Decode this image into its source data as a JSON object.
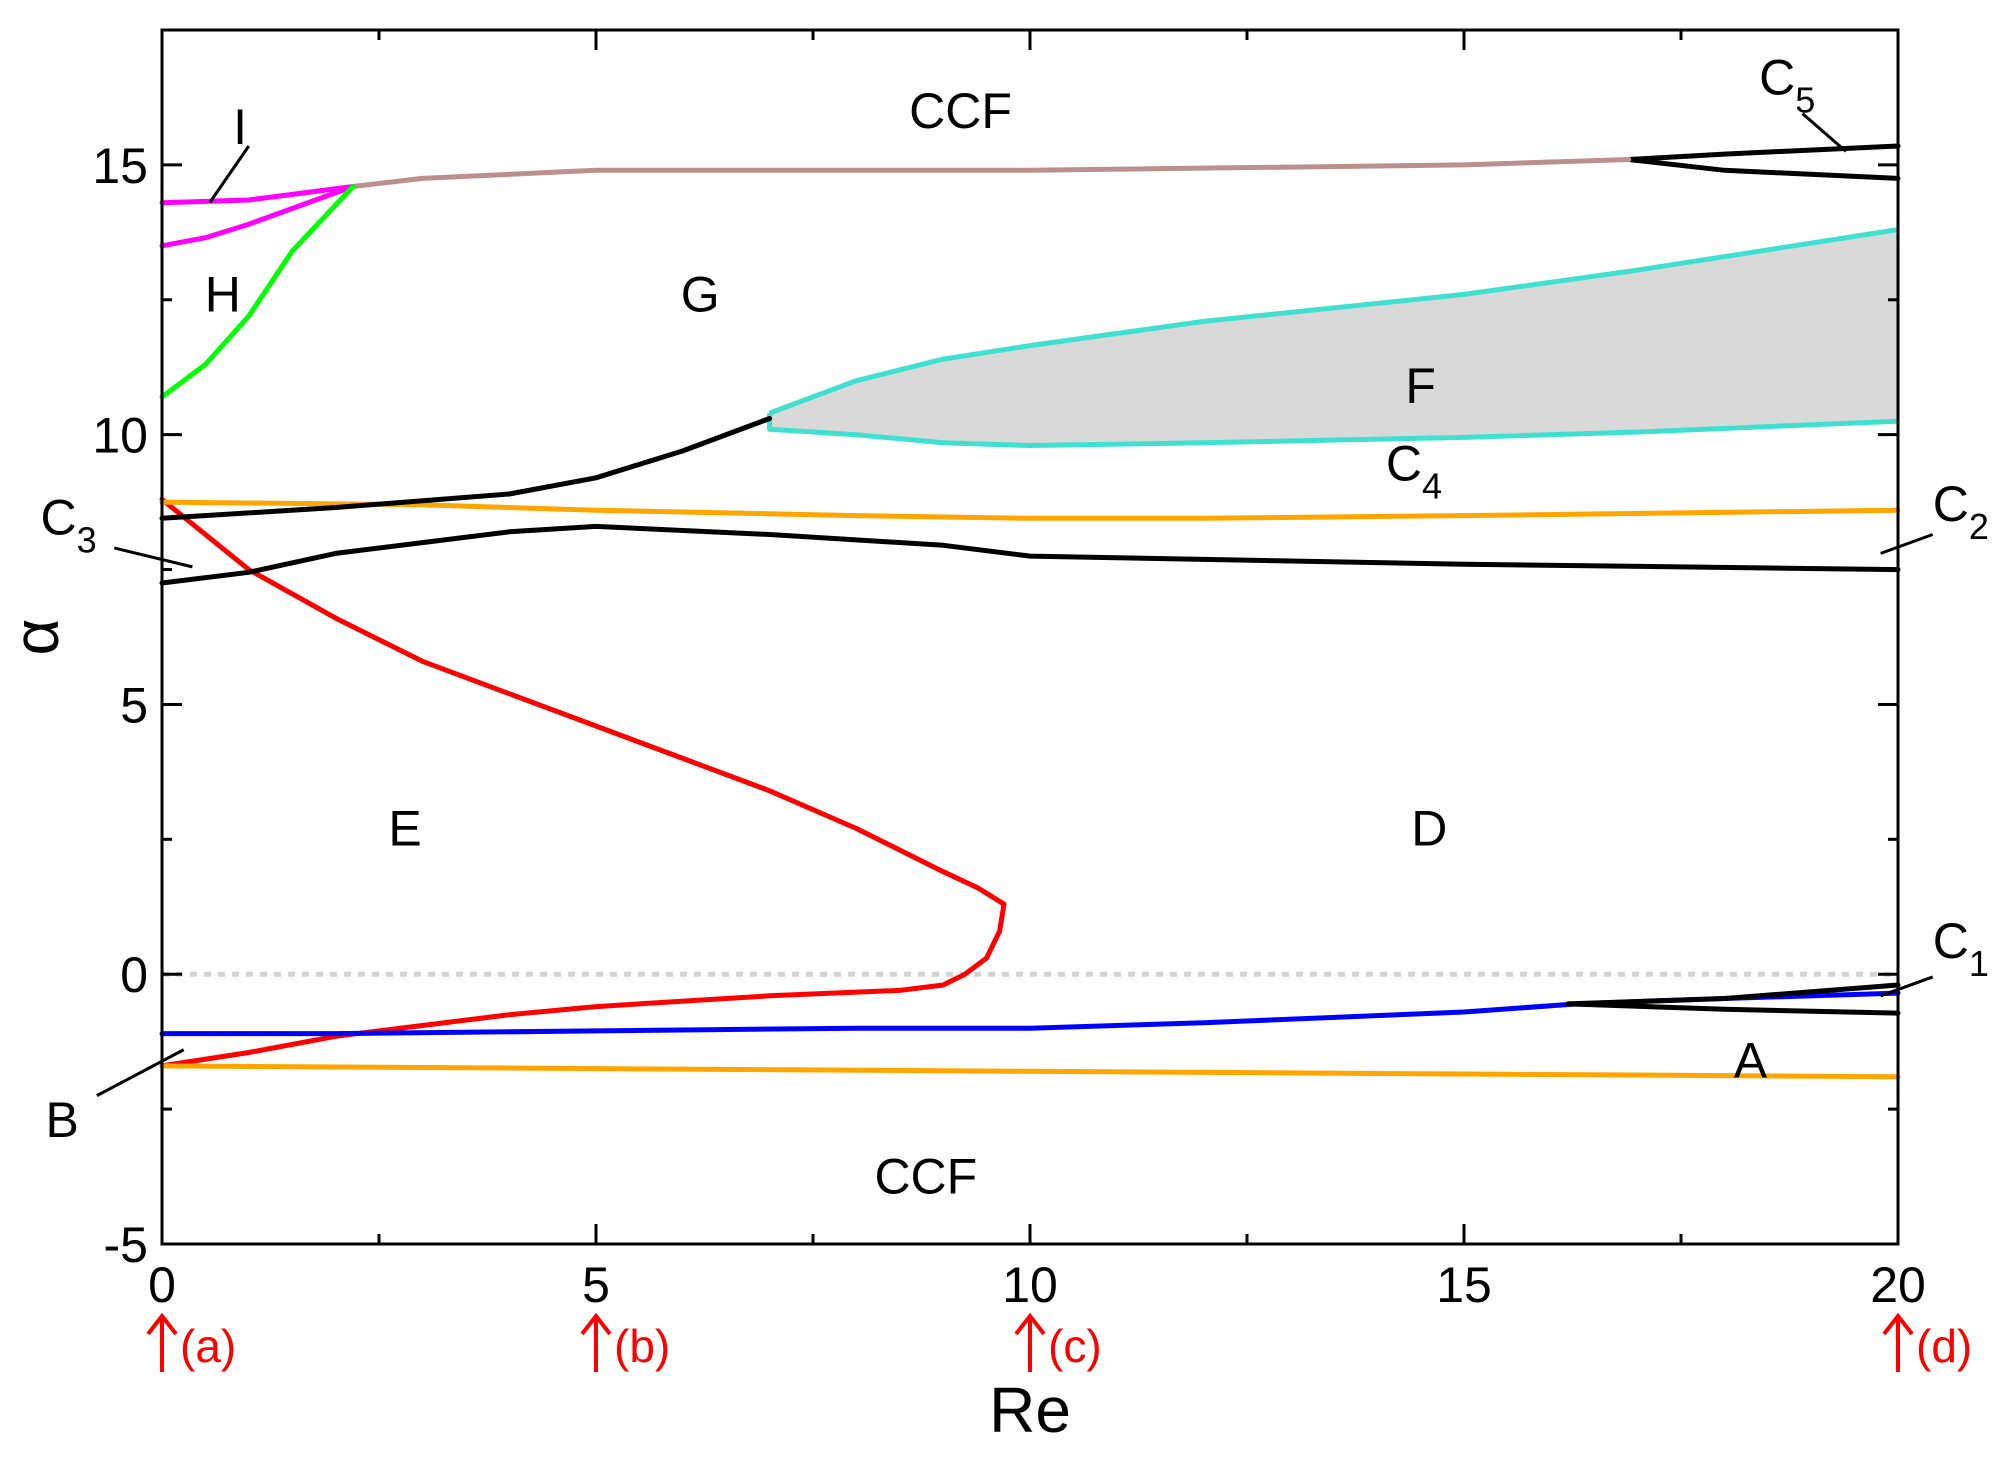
{
  "chart_data": {
    "type": "line",
    "xlabel": "Re",
    "ylabel": "α",
    "xlim": [
      0,
      20
    ],
    "ylim": [
      -5,
      17.5
    ],
    "x_ticks": [
      0,
      5,
      10,
      15,
      20
    ],
    "y_ticks": [
      -5,
      0,
      5,
      10,
      15
    ],
    "grid": false,
    "dotted_reference_line": {
      "y": 0,
      "color": "#d3d3d3"
    },
    "shaded_region": {
      "label": "F",
      "color": "#d9d9d9",
      "upper": [
        [
          7.0,
          10.4
        ],
        [
          7.5,
          10.7
        ],
        [
          8,
          11.0
        ],
        [
          9,
          11.4
        ],
        [
          10,
          11.65
        ],
        [
          12,
          12.1
        ],
        [
          15,
          12.6
        ],
        [
          17,
          13.05
        ],
        [
          20,
          13.8
        ]
      ],
      "lower": [
        [
          7.0,
          10.4
        ],
        [
          7.0,
          10.1
        ],
        [
          8,
          10.0
        ],
        [
          9,
          9.85
        ],
        [
          10,
          9.8
        ],
        [
          12,
          9.85
        ],
        [
          15,
          9.95
        ],
        [
          17,
          10.05
        ],
        [
          20,
          10.25
        ]
      ]
    },
    "series": [
      {
        "color": "#ff0000",
        "points": [
          [
            0,
            8.8
          ],
          [
            1,
            7.5
          ],
          [
            2,
            6.6
          ],
          [
            3,
            5.8
          ],
          [
            4,
            5.2
          ],
          [
            5,
            4.6
          ],
          [
            6,
            4.0
          ],
          [
            7,
            3.4
          ],
          [
            8,
            2.7
          ],
          [
            9,
            1.9
          ],
          [
            9.4,
            1.6
          ],
          [
            9.7,
            1.3
          ],
          [
            9.65,
            0.8
          ],
          [
            9.5,
            0.3
          ],
          [
            9.25,
            0.0
          ],
          [
            9.0,
            -0.2
          ],
          [
            8.5,
            -0.3
          ],
          [
            7,
            -0.4
          ],
          [
            5,
            -0.6
          ],
          [
            4,
            -0.75
          ],
          [
            3,
            -0.95
          ],
          [
            2,
            -1.15
          ],
          [
            1,
            -1.45
          ],
          [
            0,
            -1.7
          ]
        ]
      },
      {
        "color": "#0000ff",
        "points": [
          [
            0,
            -1.1
          ],
          [
            2,
            -1.1
          ],
          [
            5,
            -1.05
          ],
          [
            8,
            -1.0
          ],
          [
            10,
            -1.0
          ],
          [
            12,
            -0.9
          ],
          [
            15,
            -0.7
          ],
          [
            16.3,
            -0.55
          ],
          [
            18,
            -0.45
          ],
          [
            20,
            -0.35
          ]
        ]
      },
      {
        "color": "#ffa500",
        "points": [
          [
            0,
            8.75
          ],
          [
            3,
            8.7
          ],
          [
            5,
            8.6
          ],
          [
            8,
            8.5
          ],
          [
            10,
            8.45
          ],
          [
            12,
            8.45
          ],
          [
            15,
            8.5
          ],
          [
            20,
            8.6
          ]
        ]
      },
      {
        "color": "#ffa500",
        "points": [
          [
            0,
            -1.7
          ],
          [
            5,
            -1.75
          ],
          [
            10,
            -1.8
          ],
          [
            15,
            -1.85
          ],
          [
            20,
            -1.9
          ]
        ]
      },
      {
        "color": "#000000",
        "points": [
          [
            0,
            8.45
          ],
          [
            2,
            8.65
          ],
          [
            4,
            8.9
          ],
          [
            5,
            9.2
          ],
          [
            6,
            9.7
          ],
          [
            7,
            10.3
          ]
        ]
      },
      {
        "color": "#000000",
        "points": [
          [
            0,
            7.25
          ],
          [
            1,
            7.45
          ],
          [
            2,
            7.8
          ],
          [
            3,
            8.0
          ],
          [
            4,
            8.2
          ],
          [
            5,
            8.3
          ],
          [
            7,
            8.15
          ],
          [
            9,
            7.95
          ],
          [
            10,
            7.75
          ],
          [
            15,
            7.6
          ],
          [
            20,
            7.5
          ]
        ]
      },
      {
        "color": "#000000",
        "points": [
          [
            16.2,
            -0.55
          ],
          [
            18,
            -0.45
          ],
          [
            20,
            -0.2
          ]
        ]
      },
      {
        "color": "#000000",
        "points": [
          [
            16.2,
            -0.55
          ],
          [
            18,
            -0.65
          ],
          [
            20,
            -0.72
          ]
        ]
      },
      {
        "color": "#000000",
        "points": [
          [
            16.9,
            15.1
          ],
          [
            18,
            15.2
          ],
          [
            20,
            15.35
          ]
        ]
      },
      {
        "color": "#000000",
        "points": [
          [
            16.9,
            15.1
          ],
          [
            18,
            14.9
          ],
          [
            20,
            14.75
          ]
        ]
      },
      {
        "color": "#bc8f8f",
        "points": [
          [
            2.2,
            14.6
          ],
          [
            3,
            14.75
          ],
          [
            5,
            14.9
          ],
          [
            10,
            14.9
          ],
          [
            15,
            15.0
          ],
          [
            16.9,
            15.1
          ]
        ]
      },
      {
        "color": "#ff00ff",
        "points": [
          [
            0,
            14.3
          ],
          [
            1,
            14.35
          ],
          [
            2.2,
            14.6
          ]
        ]
      },
      {
        "color": "#ff00ff",
        "points": [
          [
            0,
            13.5
          ],
          [
            0.5,
            13.65
          ],
          [
            1,
            13.9
          ],
          [
            2.2,
            14.6
          ]
        ]
      },
      {
        "color": "#00ff00",
        "points": [
          [
            0,
            10.7
          ],
          [
            0.5,
            11.3
          ],
          [
            1,
            12.2
          ],
          [
            1.5,
            13.4
          ],
          [
            2.2,
            14.6
          ]
        ]
      }
    ],
    "region_labels": [
      {
        "text": "CCF",
        "x": 9.2,
        "y": 16.0
      },
      {
        "text": "CCF",
        "x": 8.8,
        "y": -3.75
      },
      {
        "text": "G",
        "x": 6.2,
        "y": 12.6
      },
      {
        "text": "H",
        "x": 0.7,
        "y": 12.6
      },
      {
        "text": "I",
        "x": 0.9,
        "y": 15.7
      },
      {
        "text": "F",
        "x": 14.5,
        "y": 10.9
      },
      {
        "text": "E",
        "x": 2.8,
        "y": 2.7
      },
      {
        "text": "D",
        "x": 14.6,
        "y": 2.7
      },
      {
        "text": "A",
        "x": 18.3,
        "y": -1.6
      },
      {
        "text": "B",
        "x": -1.15,
        "y": -2.7
      }
    ],
    "callouts": [
      {
        "text": "C",
        "sub": "1",
        "x": 20.4,
        "y": 0.3,
        "line": [
          [
            20.4,
            -0.05
          ],
          [
            19.8,
            -0.4
          ]
        ]
      },
      {
        "text": "C",
        "sub": "2",
        "x": 20.4,
        "y": 8.4,
        "line": [
          [
            20.4,
            8.15
          ],
          [
            19.8,
            7.8
          ]
        ]
      },
      {
        "text": "C",
        "sub": "3",
        "x": -1.4,
        "y": 8.15,
        "line": [
          [
            -0.55,
            7.9
          ],
          [
            0.35,
            7.55
          ]
        ]
      },
      {
        "text": "C",
        "sub": "4",
        "x": 14.1,
        "y": 9.15,
        "line": null
      },
      {
        "text": "C",
        "sub": "5",
        "x": 18.4,
        "y": 16.3,
        "line": [
          [
            18.9,
            15.95
          ],
          [
            19.4,
            15.25
          ]
        ]
      },
      {
        "text": "",
        "sub": "",
        "x": 0,
        "y": 0,
        "line": [
          [
            1.0,
            15.35
          ],
          [
            0.55,
            14.3
          ]
        ]
      },
      {
        "text": "",
        "sub": "",
        "x": 0,
        "y": 0,
        "line": [
          [
            -0.75,
            -2.25
          ],
          [
            0.25,
            -1.4
          ]
        ]
      }
    ],
    "markers": [
      {
        "x": 0,
        "label": "(a)"
      },
      {
        "x": 5,
        "label": "(b)"
      },
      {
        "x": 10,
        "label": "(c)"
      },
      {
        "x": 20,
        "label": "(d)"
      }
    ],
    "colors": {
      "red": "#ff0000",
      "blue": "#0000ff",
      "orange": "#ffa500",
      "black": "#000000",
      "rosybrown": "#bc8f8f",
      "magenta": "#ff00ff",
      "green": "#00ff00",
      "turquoise": "#40e0d0",
      "shade": "#d9d9d9"
    }
  }
}
